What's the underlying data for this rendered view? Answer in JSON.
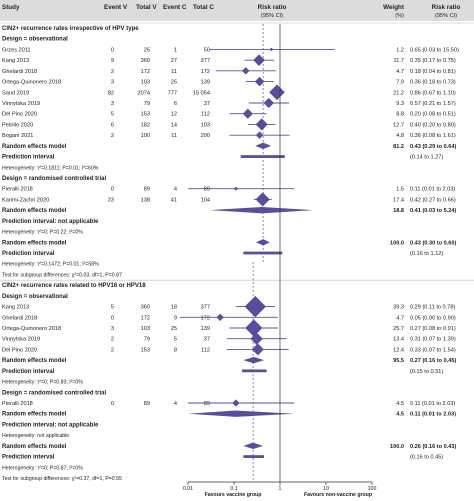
{
  "header": {
    "study": "Study",
    "event_v": "Event V",
    "total_v": "Total V",
    "event_c": "Event C",
    "total_c": "Total C",
    "rr": "Risk ratio",
    "rr_ci": "(95% CI)",
    "weight": "Weight",
    "weight_unit": "(%)",
    "rr2": "Risk ratio",
    "rr2_ci": "(95% CI)"
  },
  "colors": {
    "accent": "#5b4c9f",
    "header_bg": "#dcdcdc",
    "text": "#222222",
    "rule": "#999999"
  },
  "chart_data": {
    "type": "forest",
    "x_scale": "log",
    "x_ticks": [
      "0.01",
      "0.1",
      "1",
      "10",
      "100"
    ],
    "x_tick_values": [
      0.01,
      0.1,
      1,
      10,
      100
    ],
    "xlim": [
      0.01,
      100
    ],
    "reference_line": 1,
    "favours_left": "Favours vaccine group",
    "favours_right": "Favours non-vaccine group",
    "rows": [
      {
        "kind": "section",
        "label": "CIN2+ recurrence rates irrespective of HPV type"
      },
      {
        "kind": "design",
        "label": "Design = observational"
      },
      {
        "kind": "study",
        "label": "Grzes 2011",
        "ev": "0",
        "tv": "25",
        "ec": "1",
        "tc": "50",
        "w": "1.2",
        "ci": "0.65 (0.03 to 15.50)",
        "rr": 0.65,
        "lo": 0.03,
        "hi": 15.5
      },
      {
        "kind": "study",
        "label": "Kang 2013",
        "ev": "9",
        "tv": "360",
        "ec": "27",
        "tc": "377",
        "w": "11.7",
        "ci": "0.35 (0.17 to 0.75)",
        "rr": 0.35,
        "lo": 0.17,
        "hi": 0.75
      },
      {
        "kind": "study",
        "label": "Ghelardi 2018",
        "ev": "2",
        "tv": "172",
        "ec": "11",
        "tc": "172",
        "w": "4.7",
        "ci": "0.18 (0.04 to 0.81)",
        "rr": 0.18,
        "lo": 0.04,
        "hi": 0.81
      },
      {
        "kind": "study",
        "label": "Ortega-Quinonero 2018",
        "ev": "3",
        "tv": "103",
        "ec": "25",
        "tc": "139",
        "w": "7.9",
        "ci": "0.36 (0.18 to 0.73)",
        "rr": 0.36,
        "lo": 0.18,
        "hi": 0.73
      },
      {
        "kind": "study",
        "label": "Sand 2019",
        "ev": "82",
        "tv": "2074",
        "ec": "777",
        "tc": "15 054",
        "w": "21.2",
        "ci": "0.86 (0.67 to 1.10)",
        "rr": 0.86,
        "lo": 0.67,
        "hi": 1.1
      },
      {
        "kind": "study",
        "label": "Vinnytska 2019",
        "ev": "3",
        "tv": "79",
        "ec": "6",
        "tc": "37",
        "w": "9.3",
        "ci": "0.57 (0.21 to 1.57)",
        "rr": 0.57,
        "lo": 0.21,
        "hi": 1.57
      },
      {
        "kind": "study",
        "label": "Del Pino 2020",
        "ev": "5",
        "tv": "153",
        "ec": "12",
        "tc": "112",
        "w": "8.8",
        "ci": "0.20 (0.08 to 0.51)",
        "rr": 0.2,
        "lo": 0.08,
        "hi": 0.51
      },
      {
        "kind": "study",
        "label": "Petrillo 2020",
        "ev": "6",
        "tv": "182",
        "ec": "14",
        "tc": "103",
        "w": "12.7",
        "ci": "0.40 (0.20 to 0.80)",
        "rr": 0.4,
        "lo": 0.2,
        "hi": 0.8
      },
      {
        "kind": "study",
        "label": "Bogani 2021",
        "ev": "2",
        "tv": "100",
        "ec": "11",
        "tc": "200",
        "w": "4.8",
        "ci": "0.36 (0.08 to 1.61)",
        "rr": 0.36,
        "lo": 0.08,
        "hi": 1.61
      },
      {
        "kind": "summary",
        "label": "Random effects model",
        "w": "81.2",
        "ci": "0.43 (0.29 to 0.64)",
        "rr": 0.43,
        "lo": 0.29,
        "hi": 0.64
      },
      {
        "kind": "pi",
        "label": "Prediction interval",
        "ci": "(0.14 to 1.27)",
        "lo": 0.14,
        "hi": 1.27
      },
      {
        "kind": "het",
        "label": "Heterogeneity: τ²=0.1811; P=0.01; I²=60%"
      },
      {
        "kind": "design",
        "label": "Design = randomised controlled trial"
      },
      {
        "kind": "study",
        "label": "Pieralli 2018",
        "ev": "0",
        "tv": "89",
        "ec": "4",
        "tc": "89",
        "w": "1.5",
        "ci": "0.11 (0.01 to 2.03)",
        "rr": 0.11,
        "lo": 0.01,
        "hi": 2.03
      },
      {
        "kind": "study",
        "label": "Karimi-Zachri 2020",
        "ev": "23",
        "tv": "138",
        "ec": "41",
        "tc": "104",
        "w": "17.4",
        "ci": "0.42 (0.27 to 0.66)",
        "rr": 0.42,
        "lo": 0.27,
        "hi": 0.66
      },
      {
        "kind": "summary",
        "label": "Random effects model",
        "w": "18.8",
        "ci": "0.41 (0.03 to 5.24)",
        "rr": 0.41,
        "lo": 0.03,
        "hi": 5.24
      },
      {
        "kind": "design",
        "label": "Prediction interval: not applicable"
      },
      {
        "kind": "het",
        "label": "Heterogeneity: τ²=0; P=0.22; I²=0%"
      },
      {
        "kind": "summary",
        "label": "Random effects model",
        "w": "100.0",
        "ci": "0.43 (0.30 to 0.60)",
        "rr": 0.43,
        "lo": 0.3,
        "hi": 0.6
      },
      {
        "kind": "pi",
        "label": "Prediction interval",
        "ci": "(0.16 to 1.12)",
        "lo": 0.16,
        "hi": 1.12
      },
      {
        "kind": "het",
        "label": "Heterogeneity: τ²=0.1472; P=0.01; I²=58%"
      },
      {
        "kind": "het",
        "label": "Test for subgroup differences: χ²=0.03, df=1, P=0.87"
      },
      {
        "kind": "section",
        "label": "CIN2+ recurrence rates related to HPV16 or HPV18"
      },
      {
        "kind": "design",
        "label": "Design = observational"
      },
      {
        "kind": "study",
        "label": "Kang 2013",
        "ev": "5",
        "tv": "360",
        "ec": "18",
        "tc": "377",
        "w": "39.3",
        "ci": "0.29 (0.11 to 0.78)",
        "rr": 0.29,
        "lo": 0.11,
        "hi": 0.78
      },
      {
        "kind": "study",
        "label": "Ghelardi 2018",
        "ev": "0",
        "tv": "172",
        "ec": "9",
        "tc": "172",
        "w": "4.7",
        "ci": "0.05 (0.00 to 0.90)",
        "rr": 0.05,
        "lo": 0.003,
        "hi": 0.9
      },
      {
        "kind": "study",
        "label": "Ortega-Quinonero 2018",
        "ev": "3",
        "tv": "103",
        "ec": "25",
        "tc": "139",
        "w": "25.7",
        "ci": "0.27 (0.08 to 0.91)",
        "rr": 0.27,
        "lo": 0.08,
        "hi": 0.91
      },
      {
        "kind": "study",
        "label": "Vinnytska 2019",
        "ev": "2",
        "tv": "79",
        "ec": "5",
        "tc": "37",
        "w": "13.4",
        "ci": "0.31 (0.07 to 1.39)",
        "rr": 0.31,
        "lo": 0.07,
        "hi": 1.39
      },
      {
        "kind": "study",
        "label": "Del Pino 2020",
        "ev": "2",
        "tv": "153",
        "ec": "8",
        "tc": "112",
        "w": "12.4",
        "ci": "0.33 (0.07 to 1.54)",
        "rr": 0.33,
        "lo": 0.07,
        "hi": 1.54
      },
      {
        "kind": "summary",
        "label": "Random effects model",
        "w": "95.5",
        "ci": "0.27 (0.16 to 0.45)",
        "rr": 0.27,
        "lo": 0.16,
        "hi": 0.45
      },
      {
        "kind": "pi",
        "label": "Prediction interval",
        "ci": "(0.15 to 0.51)",
        "lo": 0.15,
        "hi": 0.51
      },
      {
        "kind": "het",
        "label": "Heterogeneity: τ²=0; P=0.83; I²=0%"
      },
      {
        "kind": "design",
        "label": "Design = randomised controlled trial"
      },
      {
        "kind": "study",
        "label": "Pieralli 2018",
        "ev": "0",
        "tv": "89",
        "ec": "4",
        "tc": "89",
        "w": "4.5",
        "ci": "0.11 (0.01 to 2.03)",
        "rr": 0.11,
        "lo": 0.01,
        "hi": 2.03
      },
      {
        "kind": "summary",
        "label": "Random effects model",
        "w": "4.5",
        "ci": "0.11 (0.01 to 2.03)",
        "rr": 0.11,
        "lo": 0.01,
        "hi": 2.03
      },
      {
        "kind": "design",
        "label": "Prediction interval: not applicable"
      },
      {
        "kind": "het",
        "label": "Heterogeneity: not applicable"
      },
      {
        "kind": "summary",
        "label": "Random effects model",
        "w": "100.0",
        "ci": "0.26 (0.16 to 0.43)",
        "rr": 0.26,
        "lo": 0.16,
        "hi": 0.43
      },
      {
        "kind": "pi",
        "label": "Prediction interval",
        "ci": "(0.16 to 0.45)",
        "lo": 0.16,
        "hi": 0.45
      },
      {
        "kind": "het",
        "label": "Heterogeneity: τ²=0; P=0.87; I²=0%"
      },
      {
        "kind": "het",
        "label": "Test for subgroup differences: χ²=0.37, df=1, P=0.55"
      }
    ]
  }
}
